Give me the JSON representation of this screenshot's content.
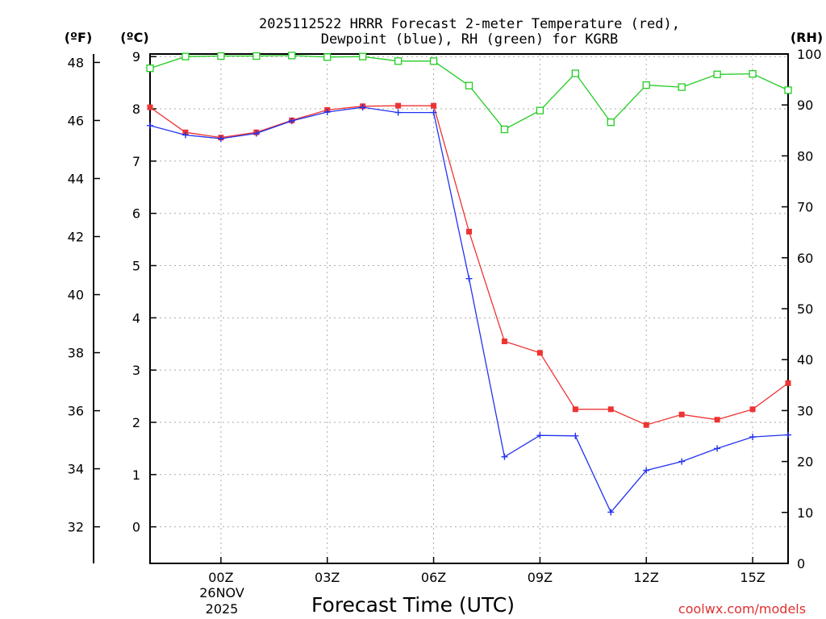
{
  "chart_data": {
    "type": "line",
    "title": "2025112522 HRRR Forecast 2-meter Temperature (red),",
    "subtitle": "Dewpoint (blue), RH (green) for KGRB",
    "xlabel": "Forecast Time (UTC)",
    "date_label": [
      "26NOV",
      "2025"
    ],
    "credit": "coolwx.com/models",
    "units": {
      "fahrenheit": "(ºF)",
      "celsius": "(ºC)",
      "rh": "(RH)"
    },
    "x_hours": [
      -2,
      -1,
      0,
      1,
      2,
      3,
      4,
      5,
      6,
      7,
      8,
      9,
      10,
      11,
      12,
      13,
      14,
      15,
      16
    ],
    "x_tick_hours": [
      0,
      3,
      6,
      9,
      12,
      15
    ],
    "x_tick_labels": [
      "00Z",
      "03Z",
      "06Z",
      "09Z",
      "12Z",
      "15Z"
    ],
    "xlim": [
      -2,
      16
    ],
    "celsius_axis": {
      "ylim": [
        -0.7,
        9.05
      ],
      "ticks": [
        0,
        1,
        2,
        3,
        4,
        5,
        6,
        7,
        8,
        9
      ],
      "tick_labels": [
        "0",
        "1",
        "2",
        "3",
        "4",
        "5",
        "6",
        "7",
        "8",
        "9"
      ]
    },
    "fahrenheit_axis": {
      "ylim": [
        30.74,
        48.29
      ],
      "ticks": [
        32,
        34,
        36,
        38,
        40,
        42,
        44,
        46,
        48
      ],
      "tick_labels": [
        "32",
        "34",
        "36",
        "38",
        "40",
        "42",
        "44",
        "46",
        "48"
      ]
    },
    "rh_axis": {
      "ylim": [
        0,
        100
      ],
      "ticks": [
        0,
        10,
        20,
        30,
        40,
        50,
        60,
        70,
        80,
        90,
        100
      ],
      "tick_labels": [
        "0",
        "10",
        "20",
        "30",
        "40",
        "50",
        "60",
        "70",
        "80",
        "90",
        "100"
      ]
    },
    "series": [
      {
        "name": "Temperature",
        "color": "#ee3333",
        "marker": "filled-square",
        "axis": "celsius",
        "values": [
          8.03,
          7.55,
          7.45,
          7.55,
          7.78,
          7.98,
          8.05,
          8.06,
          8.06,
          5.65,
          3.55,
          3.33,
          2.25,
          2.25,
          1.95,
          2.15,
          2.05,
          2.25,
          2.75
        ]
      },
      {
        "name": "Dewpoint",
        "color": "#2233ee",
        "marker": "plus",
        "axis": "celsius",
        "values": [
          7.68,
          7.5,
          7.43,
          7.53,
          7.77,
          7.94,
          8.03,
          7.93,
          7.93,
          4.75,
          1.34,
          1.75,
          1.74,
          0.28,
          1.08,
          1.25,
          1.5,
          1.72,
          1.76
        ]
      },
      {
        "name": "RH",
        "color": "#22cc22",
        "marker": "open-square",
        "axis": "rh",
        "values": [
          97.2,
          99.5,
          99.6,
          99.6,
          99.7,
          99.4,
          99.5,
          98.6,
          98.6,
          93.8,
          85.2,
          88.9,
          96.2,
          86.6,
          93.9,
          93.5,
          96.0,
          96.1,
          92.9
        ]
      }
    ]
  }
}
